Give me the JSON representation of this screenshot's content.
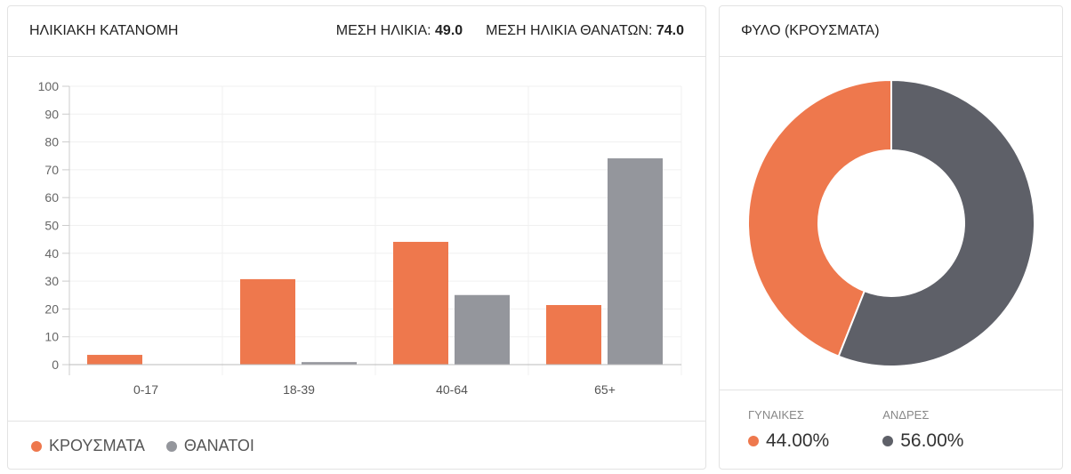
{
  "age_card": {
    "title": "ΗΛΙΚΙΑΚΗ ΚΑΤΑΝΟΜΗ",
    "mean_age_label": "ΜΕΣΗ ΗΛΙΚΙΑ:",
    "mean_age": "49.0",
    "mean_death_age_label": "ΜΕΣΗ ΗΛΙΚΙΑ ΘΑΝΑΤΩΝ:",
    "mean_death_age": "74.0"
  },
  "sex_card": {
    "title": "ΦΥΛΟ (ΚΡΟΥΣΜΑΤΑ)",
    "women_label": "ΓΥΝΑΙΚΕΣ",
    "women_value": "44.00%",
    "men_label": "ΑΝΔΡΕΣ",
    "men_value": "56.00%"
  },
  "chart_data": [
    {
      "type": "bar",
      "title": "ΗΛΙΚΙΑΚΗ ΚΑΤΑΝΟΜΗ",
      "categories": [
        "0-17",
        "18-39",
        "40-64",
        "65+"
      ],
      "series": [
        {
          "name": "ΚΡΟΥΣΜΑΤΑ",
          "color": "#ee784d",
          "values": [
            3.5,
            30.7,
            44.1,
            21.4
          ]
        },
        {
          "name": "ΘΑΝΑΤΟΙ",
          "color": "#94969c",
          "values": [
            0,
            0.9,
            25,
            74.1
          ]
        }
      ],
      "ylim": [
        0,
        100
      ],
      "yticks": [
        "0",
        "10",
        "20",
        "30",
        "40",
        "50",
        "60",
        "70",
        "80",
        "90",
        "100"
      ],
      "legend": "bottom-left",
      "grid": true
    },
    {
      "type": "pie",
      "title": "ΦΥΛΟ (ΚΡΟΥΣΜΑΤΑ)",
      "labels": [
        "ΓΥΝΑΙΚΕΣ",
        "ΑΝΔΡΕΣ"
      ],
      "values": [
        44,
        56
      ],
      "colors": [
        "#ee784d",
        "#5e6068"
      ]
    }
  ]
}
